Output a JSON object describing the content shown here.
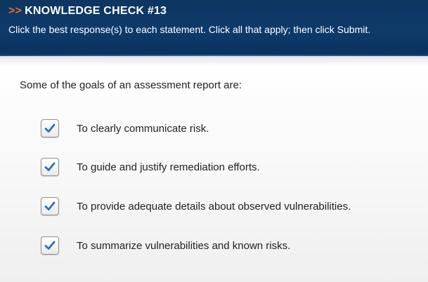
{
  "header": {
    "arrows": ">>",
    "title": "KNOWLEDGE CHECK #13",
    "instructions": "Click the best response(s) to each statement. Click all that apply; then click Submit."
  },
  "question": {
    "text": "Some of the goals of an assessment report are:"
  },
  "options": [
    {
      "label": "To clearly communicate risk.",
      "checked": true
    },
    {
      "label": "To guide and justify remediation efforts.",
      "checked": true
    },
    {
      "label": "To provide adequate details about observed vulnerabilities.",
      "checked": true
    },
    {
      "label": "To summarize vulnerabilities and known risks.",
      "checked": true
    }
  ],
  "colors": {
    "header_bg": "#0e3a6a",
    "arrows": "#f0701e",
    "checkmark": "#2f6fb5"
  },
  "icons": {
    "checkmark": "checkmark-icon"
  }
}
